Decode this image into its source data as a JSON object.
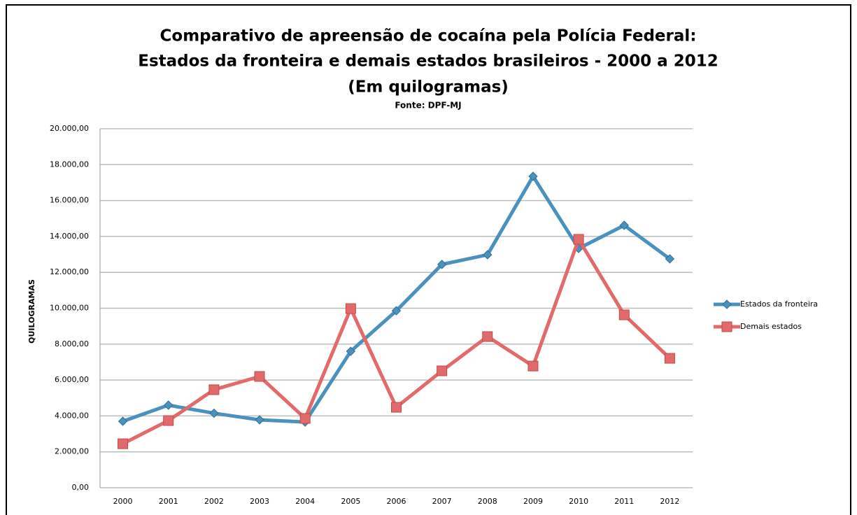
{
  "chart_data": {
    "type": "line",
    "title": [
      "Comparativo de apreensão de cocaína pela Polícia Federal:",
      "Estados da fronteira e demais estados brasileiros - 2000 a 2012",
      "(Em quilogramas)"
    ],
    "subtitle": "Fonte: DPF-MJ",
    "y_label": "QUILOGRAMAS",
    "categories": [
      "2000",
      "2001",
      "2002",
      "2003",
      "2004",
      "2005",
      "2006",
      "2007",
      "2008",
      "2009",
      "2010",
      "2011",
      "2012"
    ],
    "series": [
      {
        "name": "Estados da fronteira",
        "color": "#4a91be",
        "marker": "diamond",
        "values": [
          3700,
          4600,
          4150,
          3780,
          3660,
          7600,
          9860,
          12440,
          12980,
          17350,
          13330,
          14620,
          12750
        ]
      },
      {
        "name": "Demais estados",
        "color": "#e26a6a",
        "marker": "square",
        "values": [
          2450,
          3740,
          5460,
          6200,
          3860,
          9980,
          4480,
          6510,
          8420,
          6780,
          13840,
          9630,
          7210
        ]
      }
    ],
    "ylim": [
      0,
      20000
    ],
    "yticks": [
      {
        "value": 0,
        "label": "0,00"
      },
      {
        "value": 2000,
        "label": "2.000,00"
      },
      {
        "value": 4000,
        "label": "4.000,00"
      },
      {
        "value": 6000,
        "label": "6.000,00"
      },
      {
        "value": 8000,
        "label": "8.000,00"
      },
      {
        "value": 10000,
        "label": "10.000,00"
      },
      {
        "value": 12000,
        "label": "12.000,00"
      },
      {
        "value": 14000,
        "label": "14.000,00"
      },
      {
        "value": 16000,
        "label": "16.000,00"
      },
      {
        "value": 18000,
        "label": "18.000,00"
      },
      {
        "value": 20000,
        "label": "20.000,00"
      }
    ],
    "grid": true,
    "legend": "right"
  }
}
